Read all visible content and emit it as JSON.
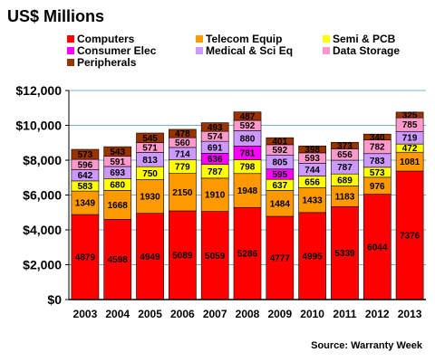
{
  "chart_data": {
    "type": "bar",
    "stacked": true,
    "title": "US$ Millions",
    "source": "Source: Warranty Week",
    "categories": [
      "2003",
      "2004",
      "2005",
      "2006",
      "2007",
      "2008",
      "2009",
      "2010",
      "2011",
      "2012",
      "2013"
    ],
    "ylim": [
      0,
      12000
    ],
    "yticks": [
      0,
      2000,
      4000,
      6000,
      8000,
      10000,
      12000
    ],
    "ytick_labels": [
      "$0",
      "$2,000",
      "$4,000",
      "$6,000",
      "$8,000",
      "$10,000",
      "$12,000"
    ],
    "grid": true,
    "legend": "top",
    "series": [
      {
        "name": "Computers",
        "color": "#ff0000",
        "values": [
          4879,
          4598,
          4949,
          5089,
          5059,
          5286,
          4777,
          4995,
          5339,
          6044,
          7376
        ]
      },
      {
        "name": "Telecom Equip",
        "color": "#ff9900",
        "values": [
          1349,
          1668,
          1930,
          2150,
          1910,
          1948,
          1484,
          1433,
          1183,
          976,
          1081
        ]
      },
      {
        "name": "Semi & PCB",
        "color": "#ffff00",
        "values": [
          583,
          680,
          750,
          779,
          787,
          798,
          637,
          656,
          689,
          573,
          472
        ]
      },
      {
        "name": "Consumer Elec",
        "color": "#ff00ff",
        "values": [
          null,
          null,
          null,
          null,
          636,
          781,
          595,
          null,
          null,
          null,
          null
        ]
      },
      {
        "name": "Medical & Sci Eq",
        "color": "#cc99ff",
        "values": [
          642,
          693,
          813,
          714,
          691,
          880,
          805,
          744,
          787,
          783,
          719
        ]
      },
      {
        "name": "Data Storage",
        "color": "#ff99cc",
        "values": [
          596,
          591,
          571,
          560,
          574,
          592,
          592,
          593,
          656,
          782,
          785
        ]
      },
      {
        "name": "Peripherals",
        "color": "#993300",
        "values": [
          573,
          543,
          545,
          478,
          493,
          487,
          401,
          398,
          373,
          340,
          325
        ]
      }
    ]
  }
}
